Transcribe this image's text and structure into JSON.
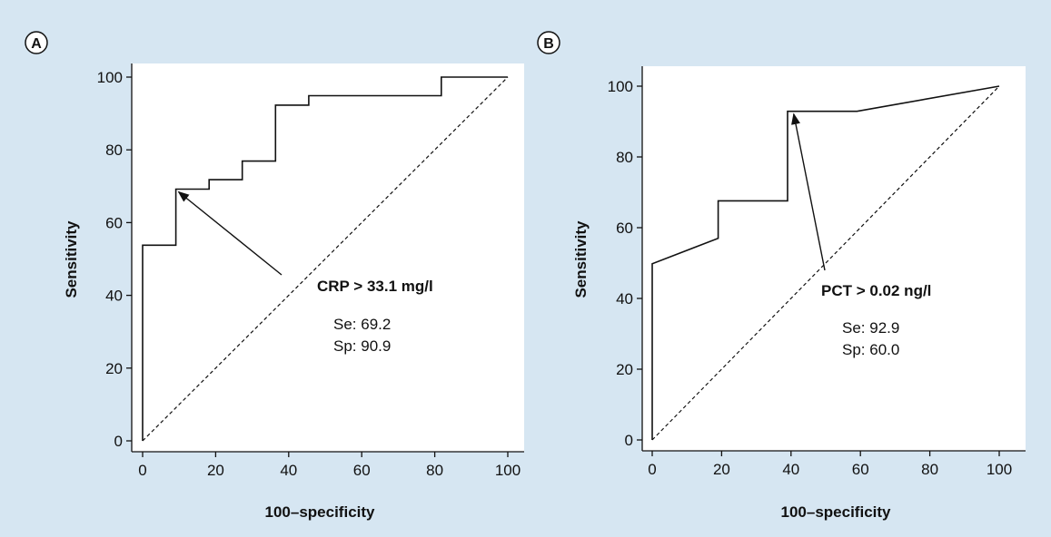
{
  "colors": {
    "background": "#d6e6f2",
    "plot_area": "#ffffff",
    "line": "#111111"
  },
  "chart_data": [
    {
      "type": "line",
      "panel_label": "A",
      "xlabel": "100–specificity",
      "ylabel": "Sensitivity",
      "xlim": [
        0,
        100
      ],
      "ylim": [
        0,
        100
      ],
      "x_ticks": [
        "0",
        "20",
        "40",
        "60",
        "80",
        "100"
      ],
      "y_ticks": [
        "0",
        "20",
        "40",
        "60",
        "80",
        "100"
      ],
      "grid": false,
      "series": [
        {
          "style": "solid",
          "x": [
            0,
            0,
            9.1,
            9.1,
            18.2,
            18.2,
            27.3,
            27.3,
            36.4,
            36.4,
            45.5,
            45.5,
            81.8,
            81.8,
            100
          ],
          "y": [
            0,
            53.8,
            53.8,
            69.2,
            69.2,
            71.8,
            71.8,
            76.9,
            76.9,
            92.3,
            92.3,
            94.9,
            94.9,
            100,
            100
          ]
        },
        {
          "style": "dashed",
          "x": [
            0,
            100
          ],
          "y": [
            0,
            100
          ]
        }
      ],
      "annotation": {
        "title": "CRP > 33.1 mg/l",
        "line1": "Se: 69.2",
        "line2": "Sp: 90.9",
        "point": [
          9.1,
          69.2
        ]
      }
    },
    {
      "type": "line",
      "panel_label": "B",
      "xlabel": "100–specificity",
      "ylabel": "Sensitivity",
      "xlim": [
        0,
        100
      ],
      "ylim": [
        0,
        100
      ],
      "x_ticks": [
        "0",
        "20",
        "40",
        "60",
        "80",
        "100"
      ],
      "y_ticks": [
        "0",
        "20",
        "40",
        "60",
        "80",
        "100"
      ],
      "grid": false,
      "series": [
        {
          "style": "solid",
          "x": [
            0,
            0,
            19,
            19,
            39,
            39,
            59,
            100
          ],
          "y": [
            0,
            49.8,
            57,
            67.6,
            67.6,
            92.9,
            92.9,
            100
          ]
        },
        {
          "style": "dashed",
          "x": [
            0,
            100
          ],
          "y": [
            0,
            100
          ]
        }
      ],
      "annotation": {
        "title": "PCT > 0.02 ng/l",
        "line1": "Se: 92.9",
        "line2": "Sp: 60.0",
        "point": [
          40,
          92.9
        ]
      }
    }
  ]
}
